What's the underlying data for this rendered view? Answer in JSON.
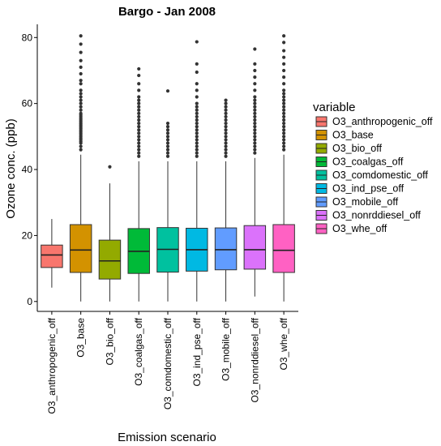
{
  "chart_data": {
    "type": "box",
    "title": "Bargo  -  Jan 2008",
    "xlabel": "Emission scenario",
    "ylabel": "Ozone conc. (ppb)",
    "ylim": [
      -3,
      84
    ],
    "yticks": [
      0,
      20,
      40,
      60,
      80
    ],
    "grid": false,
    "legend": {
      "title": "variable",
      "placement": "right"
    },
    "categories": [
      "O3_anthropogenic_off",
      "O3_base",
      "O3_bio_off",
      "O3_coalgas_off",
      "O3_comdomestic_off",
      "O3_ind_pse_off",
      "O3_mobile_off",
      "O3_nonrddiesel_off",
      "O3_whe_off"
    ],
    "series": [
      {
        "name": "O3_anthropogenic_off",
        "color": "#F8766D",
        "min": 4.2,
        "q1": 10.3,
        "median": 14.1,
        "q3": 17.1,
        "max": 25.0,
        "outliers": []
      },
      {
        "name": "O3_base",
        "color": "#D39200",
        "min": 0.0,
        "q1": 8.8,
        "median": 15.6,
        "q3": 23.3,
        "max": 44.5,
        "outliers": [
          46,
          47,
          48,
          48.5,
          49,
          49.5,
          50,
          50.5,
          51,
          51.5,
          52,
          52.5,
          53,
          53.5,
          54,
          54.5,
          55,
          55.5,
          56,
          56.5,
          57,
          58,
          59,
          60,
          61,
          62,
          63,
          64,
          66,
          67,
          69,
          71,
          73,
          75.5,
          78,
          80.5
        ]
      },
      {
        "name": "O3_bio_off",
        "color": "#93AA00",
        "min": 0.0,
        "q1": 6.8,
        "median": 12.3,
        "q3": 18.6,
        "max": 35.8,
        "outliers": [
          40.8
        ]
      },
      {
        "name": "O3_coalgas_off",
        "color": "#00BA38",
        "min": 0.0,
        "q1": 8.5,
        "median": 15.2,
        "q3": 22.1,
        "max": 42.5,
        "outliers": [
          44,
          45,
          46,
          47,
          48,
          49,
          50,
          51,
          52,
          53,
          54,
          55,
          56,
          57,
          58,
          59,
          60,
          61,
          62,
          64,
          66,
          68.5,
          70.5
        ]
      },
      {
        "name": "O3_comdomestic_off",
        "color": "#00C19F",
        "min": 0.0,
        "q1": 8.9,
        "median": 15.8,
        "q3": 22.4,
        "max": 42.5,
        "outliers": [
          44,
          45,
          46,
          47,
          48,
          49,
          50,
          51,
          52,
          53,
          54,
          63.8
        ]
      },
      {
        "name": "O3_ind_pse_off",
        "color": "#00B9E3",
        "min": 0.0,
        "q1": 9.2,
        "median": 15.7,
        "q3": 22.2,
        "max": 42.5,
        "outliers": [
          44,
          45,
          46,
          47,
          48,
          49,
          50,
          51,
          52,
          53,
          54,
          55,
          56,
          57,
          58,
          59,
          60,
          62,
          64,
          66,
          69.5,
          72,
          78.7
        ]
      },
      {
        "name": "O3_mobile_off",
        "color": "#619CFF",
        "min": 0.0,
        "q1": 9.6,
        "median": 15.7,
        "q3": 22.3,
        "max": 42.5,
        "outliers": [
          44,
          45,
          46,
          47,
          48,
          49,
          50,
          51,
          52,
          53,
          54,
          55,
          56,
          57,
          58,
          59,
          60,
          61
        ]
      },
      {
        "name": "O3_nonrddiesel_off",
        "color": "#DB72FB",
        "min": 1.5,
        "q1": 9.8,
        "median": 15.7,
        "q3": 23.0,
        "max": 43.5,
        "outliers": [
          45,
          46,
          47,
          48,
          49,
          50,
          51,
          52,
          53,
          54,
          55,
          56,
          57,
          58,
          59,
          60,
          61,
          62,
          64,
          66,
          68,
          70,
          72,
          76.5
        ]
      },
      {
        "name": "O3_whe_off",
        "color": "#FF61C3",
        "min": 0.0,
        "q1": 8.8,
        "median": 15.5,
        "q3": 23.3,
        "max": 44.5,
        "outliers": [
          46,
          47,
          48,
          49,
          50,
          51,
          52,
          53,
          54,
          55,
          56,
          57,
          58,
          59,
          60,
          61,
          62,
          63,
          64,
          66,
          68,
          70,
          72,
          74,
          76,
          78.5,
          80.5
        ]
      }
    ]
  }
}
